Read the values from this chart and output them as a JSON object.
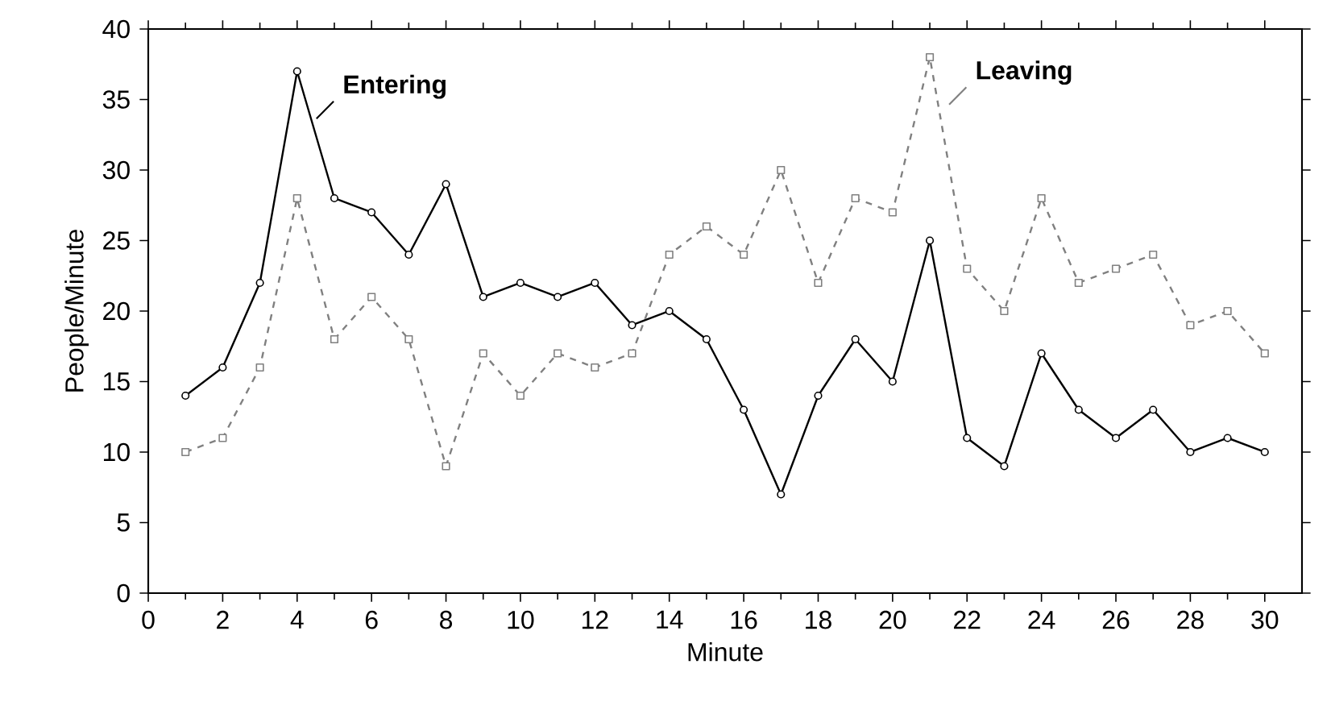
{
  "chart_data": {
    "type": "line",
    "xlabel": "Minute",
    "ylabel": "People/Minute",
    "x": [
      1,
      2,
      3,
      4,
      5,
      6,
      7,
      8,
      9,
      10,
      11,
      12,
      13,
      14,
      15,
      16,
      17,
      18,
      19,
      20,
      21,
      22,
      23,
      24,
      25,
      26,
      27,
      28,
      29,
      30
    ],
    "series": [
      {
        "name": "Entering",
        "color": "#000000",
        "marker": "circle",
        "line_style": "solid",
        "values": [
          14,
          16,
          22,
          37,
          28,
          27,
          24,
          29,
          21,
          22,
          21,
          22,
          19,
          20,
          18,
          13,
          7,
          14,
          18,
          15,
          25,
          11,
          9,
          17,
          13,
          11,
          13,
          10,
          11,
          10
        ]
      },
      {
        "name": "Leaving",
        "color": "#808080",
        "marker": "square",
        "line_style": "dashed",
        "values": [
          10,
          11,
          16,
          28,
          18,
          21,
          18,
          9,
          17,
          14,
          17,
          16,
          17,
          24,
          26,
          24,
          30,
          22,
          28,
          27,
          38,
          23,
          20,
          28,
          22,
          23,
          24,
          19,
          20,
          17
        ]
      }
    ],
    "xlim": [
      0,
      31
    ],
    "ylim": [
      0,
      40
    ],
    "xticks": [
      0,
      2,
      4,
      6,
      8,
      10,
      12,
      14,
      16,
      18,
      20,
      22,
      24,
      26,
      28,
      30
    ],
    "yticks": [
      0,
      5,
      10,
      15,
      20,
      25,
      30,
      35,
      40
    ],
    "grid": false,
    "legend": "top"
  }
}
